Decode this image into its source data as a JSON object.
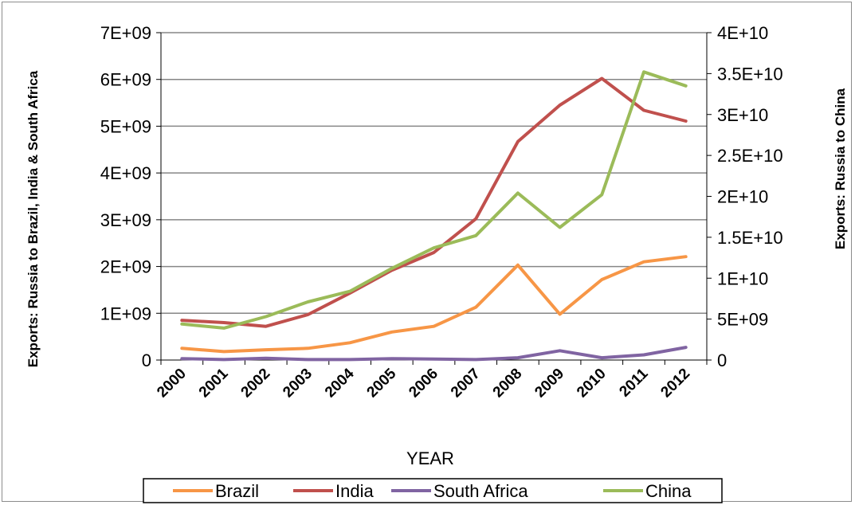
{
  "chart_data": {
    "type": "line",
    "xlabel": "YEAR",
    "ylabel_left": "Exports: Russia to Brazil, India & South Africa",
    "ylabel_right": "Exports: Russia to China",
    "categories": [
      "2000",
      "2001",
      "2002",
      "2003",
      "2004",
      "2005",
      "2006",
      "2007",
      "2008",
      "2009",
      "2010",
      "2011",
      "2012"
    ],
    "y_left": {
      "range": [
        0,
        7000000000
      ],
      "ticks": [
        0,
        1000000000,
        2000000000,
        3000000000,
        4000000000,
        5000000000,
        6000000000,
        7000000000
      ],
      "tick_labels": [
        "0",
        "1E+09",
        "2E+09",
        "3E+09",
        "4E+09",
        "5E+09",
        "6E+09",
        "7E+09"
      ]
    },
    "y_right": {
      "range": [
        0,
        40000000000
      ],
      "ticks": [
        0,
        5000000000,
        10000000000,
        15000000000,
        20000000000,
        25000000000,
        30000000000,
        35000000000,
        40000000000
      ],
      "tick_labels": [
        "0",
        "5E+09",
        "1E+10",
        "1.5E+10",
        "2E+10",
        "2.5E+10",
        "3E+10",
        "3.5E+10",
        "4E+10"
      ]
    },
    "grid": "horizontal",
    "legend_position": "bottom",
    "series": [
      {
        "name": "Brazil",
        "axis": "left",
        "color": "#F79646",
        "values": [
          250000000,
          180000000,
          220000000,
          250000000,
          370000000,
          600000000,
          720000000,
          1130000000,
          2030000000,
          980000000,
          1720000000,
          2100000000,
          2210000000
        ]
      },
      {
        "name": "India",
        "axis": "left",
        "color": "#C0504D",
        "values": [
          850000000,
          800000000,
          720000000,
          970000000,
          1430000000,
          1920000000,
          2300000000,
          3020000000,
          4670000000,
          5450000000,
          6020000000,
          5340000000,
          5110000000
        ]
      },
      {
        "name": "South Africa",
        "axis": "left",
        "color": "#8064A2",
        "values": [
          30000000,
          10000000,
          40000000,
          10000000,
          10000000,
          30000000,
          20000000,
          10000000,
          50000000,
          200000000,
          50000000,
          110000000,
          270000000
        ]
      },
      {
        "name": "China",
        "axis": "right",
        "color": "#9BBB59",
        "values": [
          4400000000,
          3900000000,
          5300000000,
          7100000000,
          8400000000,
          11200000000,
          13700000000,
          15200000000,
          20400000000,
          16200000000,
          20200000000,
          35200000000,
          33500000000
        ]
      }
    ]
  }
}
